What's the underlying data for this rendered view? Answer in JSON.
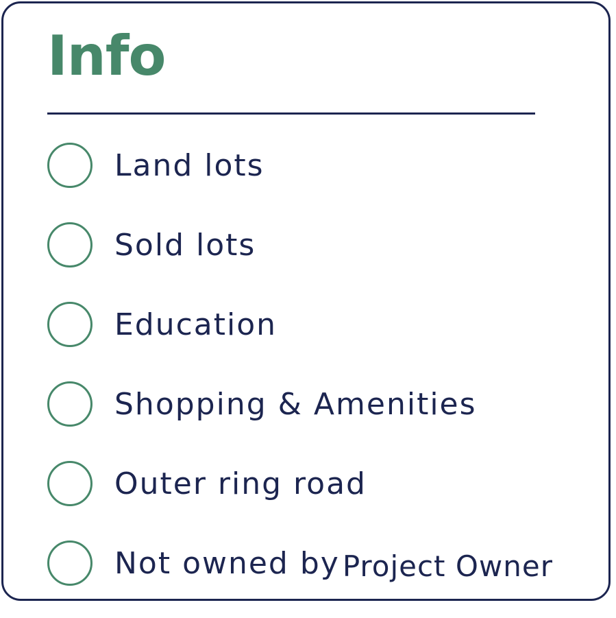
{
  "panel": {
    "title": "Info",
    "options": [
      {
        "label": "Land lots",
        "selected": false
      },
      {
        "label": "Sold lots",
        "selected": false
      },
      {
        "label": "Education",
        "selected": false
      },
      {
        "label": "Shopping & Amenities",
        "selected": false
      },
      {
        "label": "Outer ring road",
        "selected": false
      },
      {
        "label": "Not owned by",
        "label_suffix": "Project Owner",
        "selected": false
      }
    ]
  },
  "colors": {
    "accent": "#47886a",
    "text": "#1c2550",
    "border": "#1c2550",
    "background": "#ffffff"
  }
}
